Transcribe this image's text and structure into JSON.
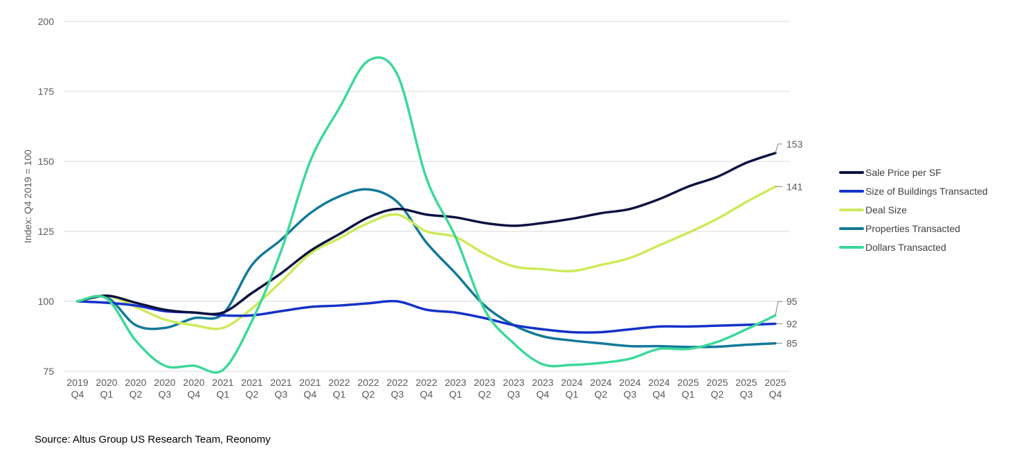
{
  "chart_data": {
    "type": "line",
    "ylabel": "Index: Q4 2019 = 100",
    "xlabel": "",
    "ylim": [
      75,
      200
    ],
    "yticks": [
      75,
      100,
      125,
      150,
      175,
      200
    ],
    "grid": true,
    "legend_position": "right",
    "categories": [
      [
        "2019",
        "Q4"
      ],
      [
        "2020",
        "Q1"
      ],
      [
        "2020",
        "Q2"
      ],
      [
        "2020",
        "Q3"
      ],
      [
        "2020",
        "Q4"
      ],
      [
        "2021",
        "Q1"
      ],
      [
        "2021",
        "Q2"
      ],
      [
        "2021",
        "Q3"
      ],
      [
        "2021",
        "Q4"
      ],
      [
        "2022",
        "Q1"
      ],
      [
        "2022",
        "Q2"
      ],
      [
        "2022",
        "Q3"
      ],
      [
        "2022",
        "Q4"
      ],
      [
        "2023",
        "Q1"
      ],
      [
        "2023",
        "Q2"
      ],
      [
        "2023",
        "Q3"
      ],
      [
        "2023",
        "Q4"
      ],
      [
        "2024",
        "Q1"
      ],
      [
        "2024",
        "Q2"
      ],
      [
        "2024",
        "Q3"
      ],
      [
        "2024",
        "Q4"
      ],
      [
        "2025",
        "Q1"
      ],
      [
        "2025",
        "Q2"
      ],
      [
        "2025",
        "Q3"
      ],
      [
        "2025",
        "Q4"
      ]
    ],
    "series": [
      {
        "name": "Sale Price per SF",
        "color": "#0b1240",
        "end_label": "153",
        "values": [
          100,
          102,
          99.5,
          97,
          96,
          96,
          103,
          110,
          118,
          124,
          130,
          133,
          131,
          130,
          128,
          127,
          128,
          129.5,
          131.5,
          133,
          136.5,
          141,
          144.5,
          149.5,
          153
        ]
      },
      {
        "name": "Size of Buildings Transacted",
        "color": "#1432c8",
        "end_label": "92",
        "values": [
          100,
          99.5,
          98.5,
          96.5,
          96,
          95,
          95,
          96.5,
          98,
          98.5,
          99.3,
          100,
          97,
          96,
          94,
          91.5,
          90,
          89,
          89,
          90,
          91,
          91,
          91.3,
          91.6,
          92
        ]
      },
      {
        "name": "Deal Size",
        "color": "#cdea5a",
        "end_label": "141",
        "values": [
          100,
          102,
          98,
          93.5,
          91.5,
          90.5,
          97.5,
          107,
          117,
          122.5,
          128,
          131,
          125,
          123,
          117,
          112.5,
          111.5,
          110.8,
          113,
          115.5,
          120,
          124.5,
          129.5,
          135.5,
          141
        ]
      },
      {
        "name": "Properties Transacted",
        "color": "#13799a",
        "end_label": "85",
        "values": [
          100,
          101.5,
          91.5,
          90.5,
          94,
          95.5,
          113,
          122,
          131.5,
          137.5,
          140,
          135.5,
          121,
          110,
          98.5,
          91.5,
          87.5,
          86,
          85,
          84,
          84,
          83.7,
          83.8,
          84.5,
          85
        ]
      },
      {
        "name": "Dollars Transacted",
        "color": "#3dd89a",
        "end_label": "95",
        "values": [
          100,
          101,
          86,
          77,
          77,
          75.5,
          93,
          118,
          150,
          169,
          186,
          181,
          144,
          123,
          97,
          85,
          77.5,
          77.3,
          78,
          79.5,
          83,
          83,
          85.5,
          90,
          95
        ]
      }
    ]
  },
  "source": "Source: Altus Group US Research Team, Reonomy"
}
